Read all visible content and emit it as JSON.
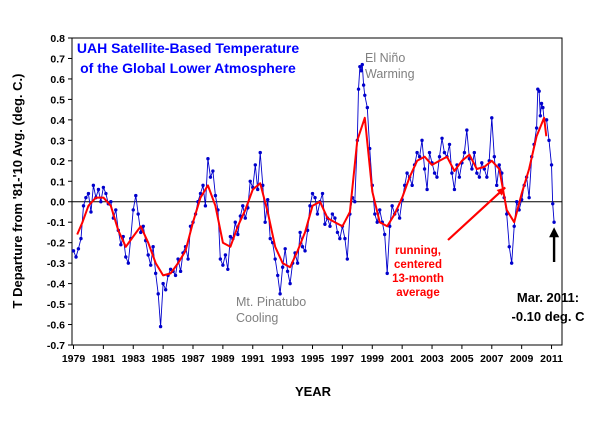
{
  "chart_data": {
    "type": "line",
    "title_lines": [
      "UAH Satellite-Based Temperature",
      "of the Global Lower Atmosphere"
    ],
    "xlabel": "YEAR",
    "ylabel": "T Departure from '81-'10 Avg. (deg. C.)",
    "ylim": [
      -0.7,
      0.8
    ],
    "xlim": [
      1978.9,
      2011.7
    ],
    "yticks": [
      0.8,
      0.7,
      0.6,
      0.5,
      0.4,
      0.3,
      0.2,
      0.1,
      0.0,
      -0.1,
      -0.2,
      -0.3,
      -0.4,
      -0.5,
      -0.6,
      -0.7
    ],
    "ytick_labels": [
      "0.8",
      "0.7",
      "0.6",
      "0.5",
      "0.4",
      "0.3",
      "0.2",
      "0.1",
      "0.0",
      "-0.1",
      "-0.2",
      "-0.3",
      "-0.4",
      "-0.5",
      "-0.6",
      "-0.7"
    ],
    "xticks": [
      1979,
      1981,
      1983,
      1985,
      1987,
      1989,
      1991,
      1993,
      1995,
      1997,
      1999,
      2001,
      2003,
      2005,
      2007,
      2009,
      2011
    ],
    "xtick_labels": [
      "1979",
      "1981",
      "1983",
      "1985",
      "1987",
      "1989",
      "1991",
      "1993",
      "1995",
      "1997",
      "1999",
      "2001",
      "2003",
      "2005",
      "2007",
      "2009",
      "2011"
    ],
    "grid": false,
    "zero_line": true,
    "series": [
      {
        "kind": "monthly",
        "color": "#0000cc",
        "marker": "dot",
        "points": [
          [
            1979.0,
            -0.24
          ],
          [
            1979.17,
            -0.27
          ],
          [
            1979.33,
            -0.23
          ],
          [
            1979.5,
            -0.18
          ],
          [
            1979.67,
            -0.02
          ],
          [
            1979.83,
            0.02
          ],
          [
            1980.0,
            0.04
          ],
          [
            1980.17,
            -0.05
          ],
          [
            1980.33,
            0.08
          ],
          [
            1980.5,
            0.02
          ],
          [
            1980.67,
            0.06
          ],
          [
            1980.83,
            0.0
          ],
          [
            1981.0,
            0.07
          ],
          [
            1981.17,
            0.04
          ],
          [
            1981.33,
            -0.01
          ],
          [
            1981.5,
            0.0
          ],
          [
            1981.67,
            -0.08
          ],
          [
            1981.83,
            -0.04
          ],
          [
            1982.0,
            -0.14
          ],
          [
            1982.17,
            -0.21
          ],
          [
            1982.33,
            -0.17
          ],
          [
            1982.5,
            -0.27
          ],
          [
            1982.67,
            -0.3
          ],
          [
            1982.83,
            -0.18
          ],
          [
            1983.0,
            -0.04
          ],
          [
            1983.17,
            0.03
          ],
          [
            1983.33,
            -0.06
          ],
          [
            1983.5,
            -0.15
          ],
          [
            1983.67,
            -0.12
          ],
          [
            1983.83,
            -0.19
          ],
          [
            1984.0,
            -0.26
          ],
          [
            1984.17,
            -0.31
          ],
          [
            1984.33,
            -0.22
          ],
          [
            1984.5,
            -0.35
          ],
          [
            1984.67,
            -0.45
          ],
          [
            1984.83,
            -0.61
          ],
          [
            1985.0,
            -0.4
          ],
          [
            1985.17,
            -0.43
          ],
          [
            1985.33,
            -0.36
          ],
          [
            1985.5,
            -0.33
          ],
          [
            1985.67,
            -0.34
          ],
          [
            1985.83,
            -0.36
          ],
          [
            1986.0,
            -0.28
          ],
          [
            1986.17,
            -0.34
          ],
          [
            1986.33,
            -0.25
          ],
          [
            1986.5,
            -0.22
          ],
          [
            1986.67,
            -0.28
          ],
          [
            1986.83,
            -0.12
          ],
          [
            1987.0,
            -0.1
          ],
          [
            1987.17,
            -0.06
          ],
          [
            1987.33,
            0.0
          ],
          [
            1987.5,
            0.04
          ],
          [
            1987.67,
            0.08
          ],
          [
            1987.83,
            -0.02
          ],
          [
            1988.0,
            0.21
          ],
          [
            1988.17,
            0.12
          ],
          [
            1988.33,
            0.15
          ],
          [
            1988.5,
            0.03
          ],
          [
            1988.67,
            -0.04
          ],
          [
            1988.83,
            -0.28
          ],
          [
            1989.0,
            -0.31
          ],
          [
            1989.17,
            -0.26
          ],
          [
            1989.33,
            -0.33
          ],
          [
            1989.5,
            -0.17
          ],
          [
            1989.67,
            -0.18
          ],
          [
            1989.83,
            -0.1
          ],
          [
            1990.0,
            -0.16
          ],
          [
            1990.17,
            -0.07
          ],
          [
            1990.33,
            -0.02
          ],
          [
            1990.5,
            -0.08
          ],
          [
            1990.67,
            -0.03
          ],
          [
            1990.83,
            0.1
          ],
          [
            1991.0,
            0.07
          ],
          [
            1991.17,
            0.18
          ],
          [
            1991.33,
            0.06
          ],
          [
            1991.5,
            0.24
          ],
          [
            1991.67,
            0.08
          ],
          [
            1991.83,
            -0.1
          ],
          [
            1992.0,
            0.01
          ],
          [
            1992.17,
            -0.18
          ],
          [
            1992.33,
            -0.2
          ],
          [
            1992.5,
            -0.28
          ],
          [
            1992.67,
            -0.36
          ],
          [
            1992.83,
            -0.45
          ],
          [
            1993.0,
            -0.32
          ],
          [
            1993.17,
            -0.23
          ],
          [
            1993.33,
            -0.34
          ],
          [
            1993.5,
            -0.4
          ],
          [
            1993.67,
            -0.3
          ],
          [
            1993.83,
            -0.25
          ],
          [
            1994.0,
            -0.3
          ],
          [
            1994.17,
            -0.15
          ],
          [
            1994.33,
            -0.22
          ],
          [
            1994.5,
            -0.24
          ],
          [
            1994.67,
            -0.14
          ],
          [
            1994.83,
            -0.02
          ],
          [
            1995.0,
            0.04
          ],
          [
            1995.17,
            0.02
          ],
          [
            1995.33,
            -0.06
          ],
          [
            1995.5,
            0.0
          ],
          [
            1995.67,
            0.04
          ],
          [
            1995.83,
            -0.11
          ],
          [
            1996.0,
            -0.08
          ],
          [
            1996.17,
            -0.12
          ],
          [
            1996.33,
            -0.06
          ],
          [
            1996.5,
            -0.08
          ],
          [
            1996.67,
            -0.15
          ],
          [
            1996.83,
            -0.18
          ],
          [
            1997.0,
            -0.12
          ],
          [
            1997.17,
            -0.18
          ],
          [
            1997.33,
            -0.28
          ],
          [
            1997.5,
            -0.06
          ],
          [
            1997.67,
            0.02
          ],
          [
            1997.83,
            0.0
          ],
          [
            1998.0,
            0.3
          ],
          [
            1998.08,
            0.55
          ],
          [
            1998.17,
            0.66
          ],
          [
            1998.25,
            0.64
          ],
          [
            1998.33,
            0.67
          ],
          [
            1998.42,
            0.57
          ],
          [
            1998.5,
            0.52
          ],
          [
            1998.67,
            0.46
          ],
          [
            1998.83,
            0.26
          ],
          [
            1999.0,
            0.08
          ],
          [
            1999.17,
            -0.06
          ],
          [
            1999.33,
            -0.1
          ],
          [
            1999.5,
            -0.04
          ],
          [
            1999.67,
            -0.1
          ],
          [
            1999.83,
            -0.16
          ],
          [
            2000.0,
            -0.35
          ],
          [
            2000.17,
            -0.12
          ],
          [
            2000.33,
            -0.02
          ],
          [
            2000.5,
            -0.06
          ],
          [
            2000.67,
            -0.04
          ],
          [
            2000.83,
            -0.08
          ],
          [
            2001.0,
            0.01
          ],
          [
            2001.17,
            0.08
          ],
          [
            2001.33,
            0.14
          ],
          [
            2001.5,
            0.12
          ],
          [
            2001.67,
            0.08
          ],
          [
            2001.83,
            0.18
          ],
          [
            2002.0,
            0.24
          ],
          [
            2002.17,
            0.22
          ],
          [
            2002.33,
            0.3
          ],
          [
            2002.5,
            0.16
          ],
          [
            2002.67,
            0.06
          ],
          [
            2002.83,
            0.24
          ],
          [
            2003.0,
            0.19
          ],
          [
            2003.17,
            0.14
          ],
          [
            2003.33,
            0.12
          ],
          [
            2003.5,
            0.22
          ],
          [
            2003.67,
            0.31
          ],
          [
            2003.83,
            0.24
          ],
          [
            2004.0,
            0.22
          ],
          [
            2004.17,
            0.28
          ],
          [
            2004.33,
            0.14
          ],
          [
            2004.5,
            0.06
          ],
          [
            2004.67,
            0.18
          ],
          [
            2004.83,
            0.12
          ],
          [
            2005.0,
            0.19
          ],
          [
            2005.17,
            0.24
          ],
          [
            2005.33,
            0.35
          ],
          [
            2005.5,
            0.21
          ],
          [
            2005.67,
            0.16
          ],
          [
            2005.83,
            0.24
          ],
          [
            2006.0,
            0.14
          ],
          [
            2006.17,
            0.12
          ],
          [
            2006.33,
            0.19
          ],
          [
            2006.5,
            0.16
          ],
          [
            2006.67,
            0.12
          ],
          [
            2006.83,
            0.2
          ],
          [
            2007.0,
            0.41
          ],
          [
            2007.17,
            0.22
          ],
          [
            2007.33,
            0.08
          ],
          [
            2007.5,
            0.18
          ],
          [
            2007.67,
            0.14
          ],
          [
            2007.83,
            0.02
          ],
          [
            2008.0,
            -0.06
          ],
          [
            2008.17,
            -0.22
          ],
          [
            2008.33,
            -0.3
          ],
          [
            2008.5,
            -0.12
          ],
          [
            2008.67,
            0.0
          ],
          [
            2008.83,
            -0.04
          ],
          [
            2009.0,
            0.01
          ],
          [
            2009.17,
            0.08
          ],
          [
            2009.33,
            0.12
          ],
          [
            2009.5,
            0.02
          ],
          [
            2009.67,
            0.22
          ],
          [
            2009.83,
            0.28
          ],
          [
            2010.0,
            0.36
          ],
          [
            2010.08,
            0.55
          ],
          [
            2010.17,
            0.54
          ],
          [
            2010.25,
            0.42
          ],
          [
            2010.33,
            0.48
          ],
          [
            2010.42,
            0.46
          ],
          [
            2010.5,
            0.4
          ],
          [
            2010.67,
            0.4
          ],
          [
            2010.83,
            0.3
          ],
          [
            2011.0,
            0.18
          ],
          [
            2011.08,
            -0.01
          ],
          [
            2011.17,
            -0.1
          ]
        ]
      },
      {
        "name": "running, centered 13-month average",
        "kind": "running_mean",
        "color": "#ff0000",
        "points": [
          [
            1979.25,
            -0.16
          ],
          [
            1979.6,
            -0.1
          ],
          [
            1980.0,
            -0.02
          ],
          [
            1980.5,
            0.02
          ],
          [
            1981.0,
            0.02
          ],
          [
            1981.5,
            -0.02
          ],
          [
            1982.0,
            -0.14
          ],
          [
            1982.5,
            -0.22
          ],
          [
            1983.0,
            -0.17
          ],
          [
            1983.5,
            -0.12
          ],
          [
            1984.0,
            -0.2
          ],
          [
            1984.5,
            -0.3
          ],
          [
            1985.0,
            -0.36
          ],
          [
            1985.5,
            -0.35
          ],
          [
            1986.0,
            -0.3
          ],
          [
            1986.5,
            -0.24
          ],
          [
            1987.0,
            -0.1
          ],
          [
            1987.5,
            0.02
          ],
          [
            1988.0,
            0.08
          ],
          [
            1988.5,
            -0.02
          ],
          [
            1989.0,
            -0.2
          ],
          [
            1989.5,
            -0.22
          ],
          [
            1990.0,
            -0.12
          ],
          [
            1990.5,
            -0.04
          ],
          [
            1991.0,
            0.06
          ],
          [
            1991.5,
            0.09
          ],
          [
            1992.0,
            -0.05
          ],
          [
            1992.5,
            -0.22
          ],
          [
            1993.0,
            -0.3
          ],
          [
            1993.5,
            -0.32
          ],
          [
            1994.0,
            -0.24
          ],
          [
            1994.5,
            -0.15
          ],
          [
            1995.0,
            -0.02
          ],
          [
            1995.5,
            0.0
          ],
          [
            1996.0,
            -0.08
          ],
          [
            1996.5,
            -0.1
          ],
          [
            1997.0,
            -0.12
          ],
          [
            1997.5,
            -0.05
          ],
          [
            1998.0,
            0.3
          ],
          [
            1998.5,
            0.41
          ],
          [
            1999.0,
            0.05
          ],
          [
            1999.5,
            -0.1
          ],
          [
            2000.0,
            -0.12
          ],
          [
            2000.5,
            -0.06
          ],
          [
            2001.0,
            0.02
          ],
          [
            2001.5,
            0.12
          ],
          [
            2002.0,
            0.2
          ],
          [
            2002.5,
            0.22
          ],
          [
            2003.0,
            0.18
          ],
          [
            2003.5,
            0.2
          ],
          [
            2004.0,
            0.22
          ],
          [
            2004.5,
            0.15
          ],
          [
            2005.0,
            0.2
          ],
          [
            2005.5,
            0.23
          ],
          [
            2006.0,
            0.16
          ],
          [
            2006.5,
            0.17
          ],
          [
            2007.0,
            0.2
          ],
          [
            2007.5,
            0.16
          ],
          [
            2008.0,
            -0.04
          ],
          [
            2008.5,
            -0.1
          ],
          [
            2009.0,
            0.04
          ],
          [
            2009.5,
            0.16
          ],
          [
            2010.0,
            0.32
          ],
          [
            2010.5,
            0.41
          ],
          [
            2010.65,
            0.32
          ]
        ]
      }
    ],
    "annotations": [
      {
        "lines": [
          "El Niño",
          "Warming"
        ],
        "color": "#808080"
      },
      {
        "lines": [
          "Mt. Pinatubo",
          "Cooling"
        ],
        "color": "#808080"
      },
      {
        "lines": [
          "running,",
          "centered",
          "13-month",
          "average"
        ],
        "color": "#ff0000"
      },
      {
        "lines": [
          "Mar. 2011:",
          "-0.10 deg. C"
        ],
        "color": "#000000"
      }
    ],
    "title_color": "#0000ff"
  }
}
